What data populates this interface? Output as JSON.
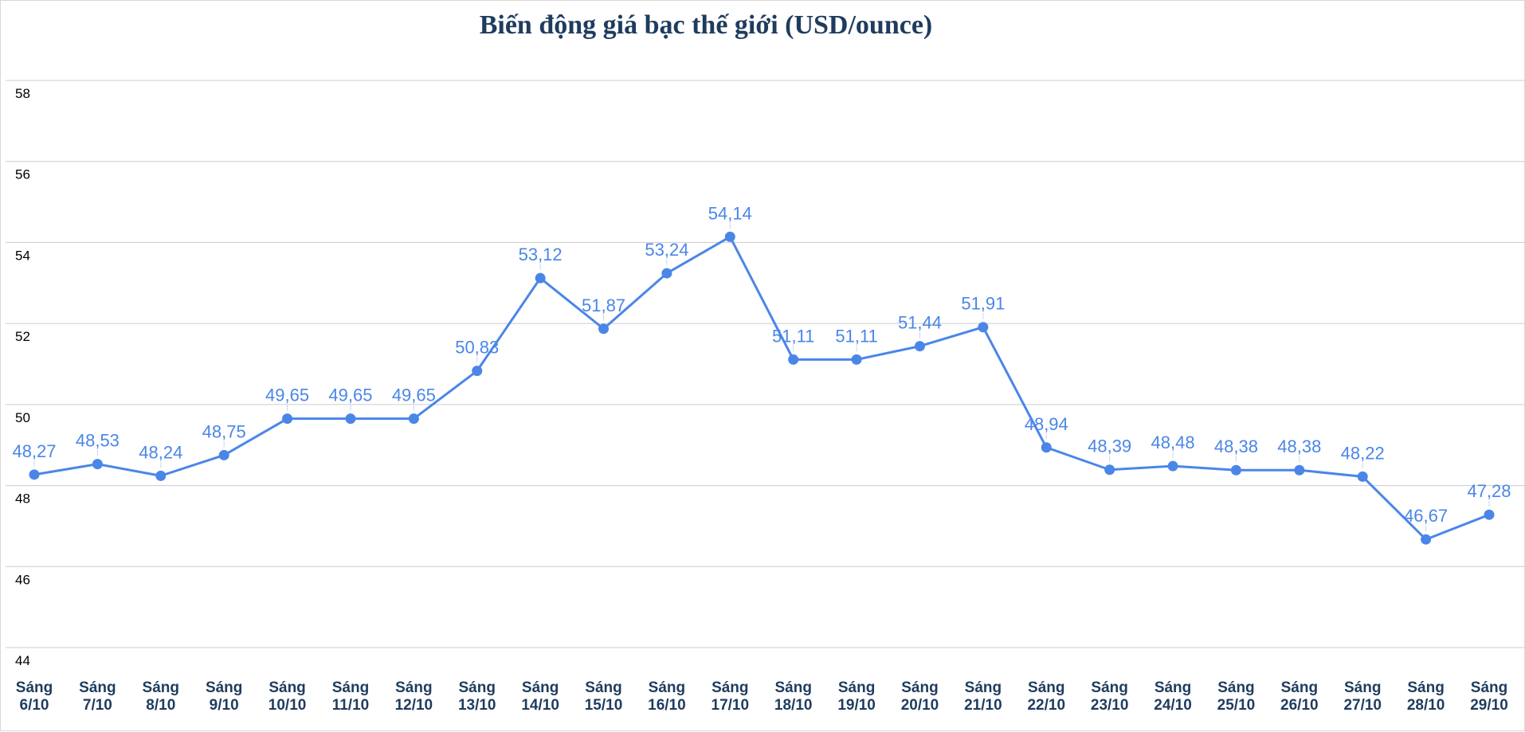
{
  "chart_data": {
    "type": "line",
    "title": "Biến động giá bạc thế giới (USD/ounce)",
    "xlabel": "",
    "ylabel": "",
    "ylim": [
      44,
      58
    ],
    "yticks": [
      44,
      46,
      48,
      50,
      52,
      54,
      56,
      58
    ],
    "grid": true,
    "legend": "none",
    "series_color": "#4a86e8",
    "categories": [
      [
        "Sáng",
        "6/10"
      ],
      [
        "Sáng",
        "7/10"
      ],
      [
        "Sáng",
        "8/10"
      ],
      [
        "Sáng",
        "9/10"
      ],
      [
        "Sáng",
        "10/10"
      ],
      [
        "Sáng",
        "11/10"
      ],
      [
        "Sáng",
        "12/10"
      ],
      [
        "Sáng",
        "13/10"
      ],
      [
        "Sáng",
        "14/10"
      ],
      [
        "Sáng",
        "15/10"
      ],
      [
        "Sáng",
        "16/10"
      ],
      [
        "Sáng",
        "17/10"
      ],
      [
        "Sáng",
        "18/10"
      ],
      [
        "Sáng",
        "19/10"
      ],
      [
        "Sáng",
        "20/10"
      ],
      [
        "Sáng",
        "21/10"
      ],
      [
        "Sáng",
        "22/10"
      ],
      [
        "Sáng",
        "23/10"
      ],
      [
        "Sáng",
        "24/10"
      ],
      [
        "Sáng",
        "25/10"
      ],
      [
        "Sáng",
        "26/10"
      ],
      [
        "Sáng",
        "27/10"
      ],
      [
        "Sáng",
        "28/10"
      ],
      [
        "Sáng",
        "29/10"
      ]
    ],
    "values": [
      48.27,
      48.53,
      48.24,
      48.75,
      49.65,
      49.65,
      49.65,
      50.83,
      53.12,
      51.87,
      53.24,
      54.14,
      51.11,
      51.11,
      51.44,
      51.91,
      48.94,
      48.39,
      48.48,
      48.38,
      48.38,
      48.22,
      46.67,
      47.28
    ],
    "labels": [
      "48,27",
      "48,53",
      "48,24",
      "48,75",
      "49,65",
      "49,65",
      "49,65",
      "50,83",
      "53,12",
      "51,87",
      "53,24",
      "54,14",
      "51,11",
      "51,11",
      "51,44",
      "51,91",
      "48,94",
      "48,39",
      "48,48",
      "48,38",
      "48,38",
      "48,22",
      "46,67",
      "47,28"
    ]
  }
}
